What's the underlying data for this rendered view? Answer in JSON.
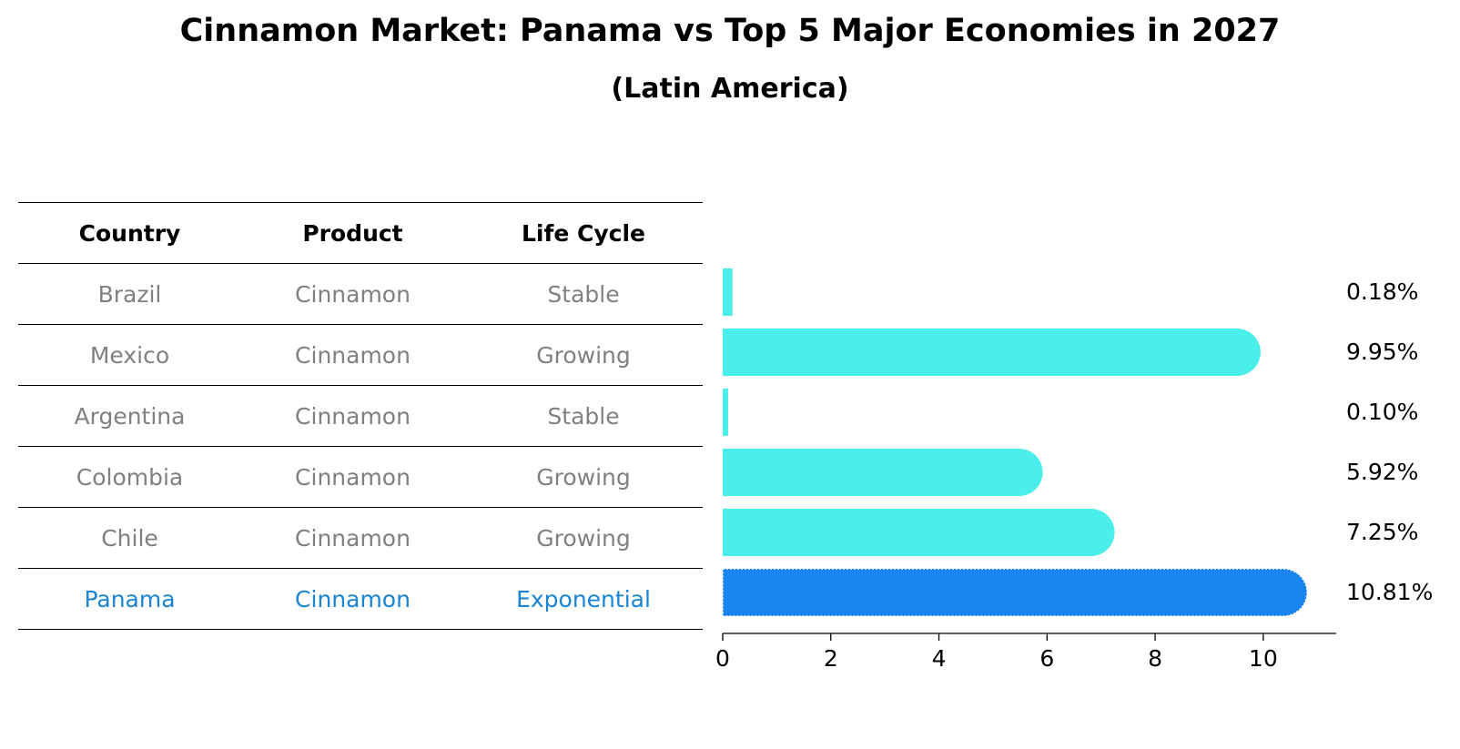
{
  "title": "Cinnamon Market: Panama vs Top 5 Major Economies in 2027",
  "subtitle": "(Latin America)",
  "table": {
    "headers": [
      "Country",
      "Product",
      "Life Cycle"
    ],
    "rows": [
      {
        "country": "Brazil",
        "product": "Cinnamon",
        "life_cycle": "Stable"
      },
      {
        "country": "Mexico",
        "product": "Cinnamon",
        "life_cycle": "Growing"
      },
      {
        "country": "Argentina",
        "product": "Cinnamon",
        "life_cycle": "Stable"
      },
      {
        "country": "Colombia",
        "product": "Cinnamon",
        "life_cycle": "Growing"
      },
      {
        "country": "Chile",
        "product": "Cinnamon",
        "life_cycle": "Growing"
      },
      {
        "country": "Panama",
        "product": "Cinnamon",
        "life_cycle": "Exponential"
      }
    ]
  },
  "colors": {
    "bar": "#4aeeea",
    "highlight_bar": "#1a84f0",
    "highlight_text": "#1a84d6",
    "muted_text": "#808080"
  },
  "chart_data": {
    "type": "bar",
    "orientation": "horizontal",
    "categories": [
      "Brazil",
      "Mexico",
      "Argentina",
      "Colombia",
      "Chile",
      "Panama"
    ],
    "values": [
      0.18,
      9.95,
      0.1,
      5.92,
      7.25,
      10.81
    ],
    "value_labels": [
      "0.18%",
      "9.95%",
      "0.10%",
      "5.92%",
      "7.25%",
      "10.81%"
    ],
    "highlight": "Panama",
    "xlim": [
      0,
      11.35
    ],
    "xticks": [
      0,
      2,
      4,
      6,
      8,
      10
    ],
    "xtick_labels": [
      "0",
      "2",
      "4",
      "6",
      "8",
      "10"
    ],
    "grid": false
  }
}
